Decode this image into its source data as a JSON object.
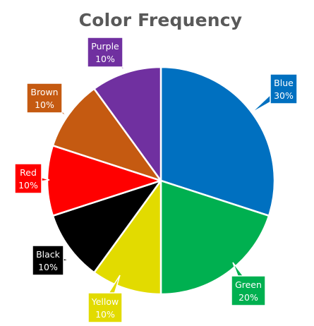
{
  "chart_data": {
    "type": "pie",
    "title": "Color Frequency",
    "start_angle_deg": 0,
    "direction": "clockwise",
    "labels": [
      "Blue",
      "Green",
      "Yellow",
      "Black",
      "Red",
      "Brown",
      "Purple"
    ],
    "values": [
      30,
      20,
      10,
      10,
      10,
      10,
      10
    ],
    "value_labels": [
      "30%",
      "20%",
      "10%",
      "10%",
      "10%",
      "10%",
      "10%"
    ],
    "colors": [
      "#0070c0",
      "#00b050",
      "#e2db00",
      "#000000",
      "#ff0000",
      "#c55a11",
      "#7030a0"
    ],
    "data_label_style": "callout"
  }
}
